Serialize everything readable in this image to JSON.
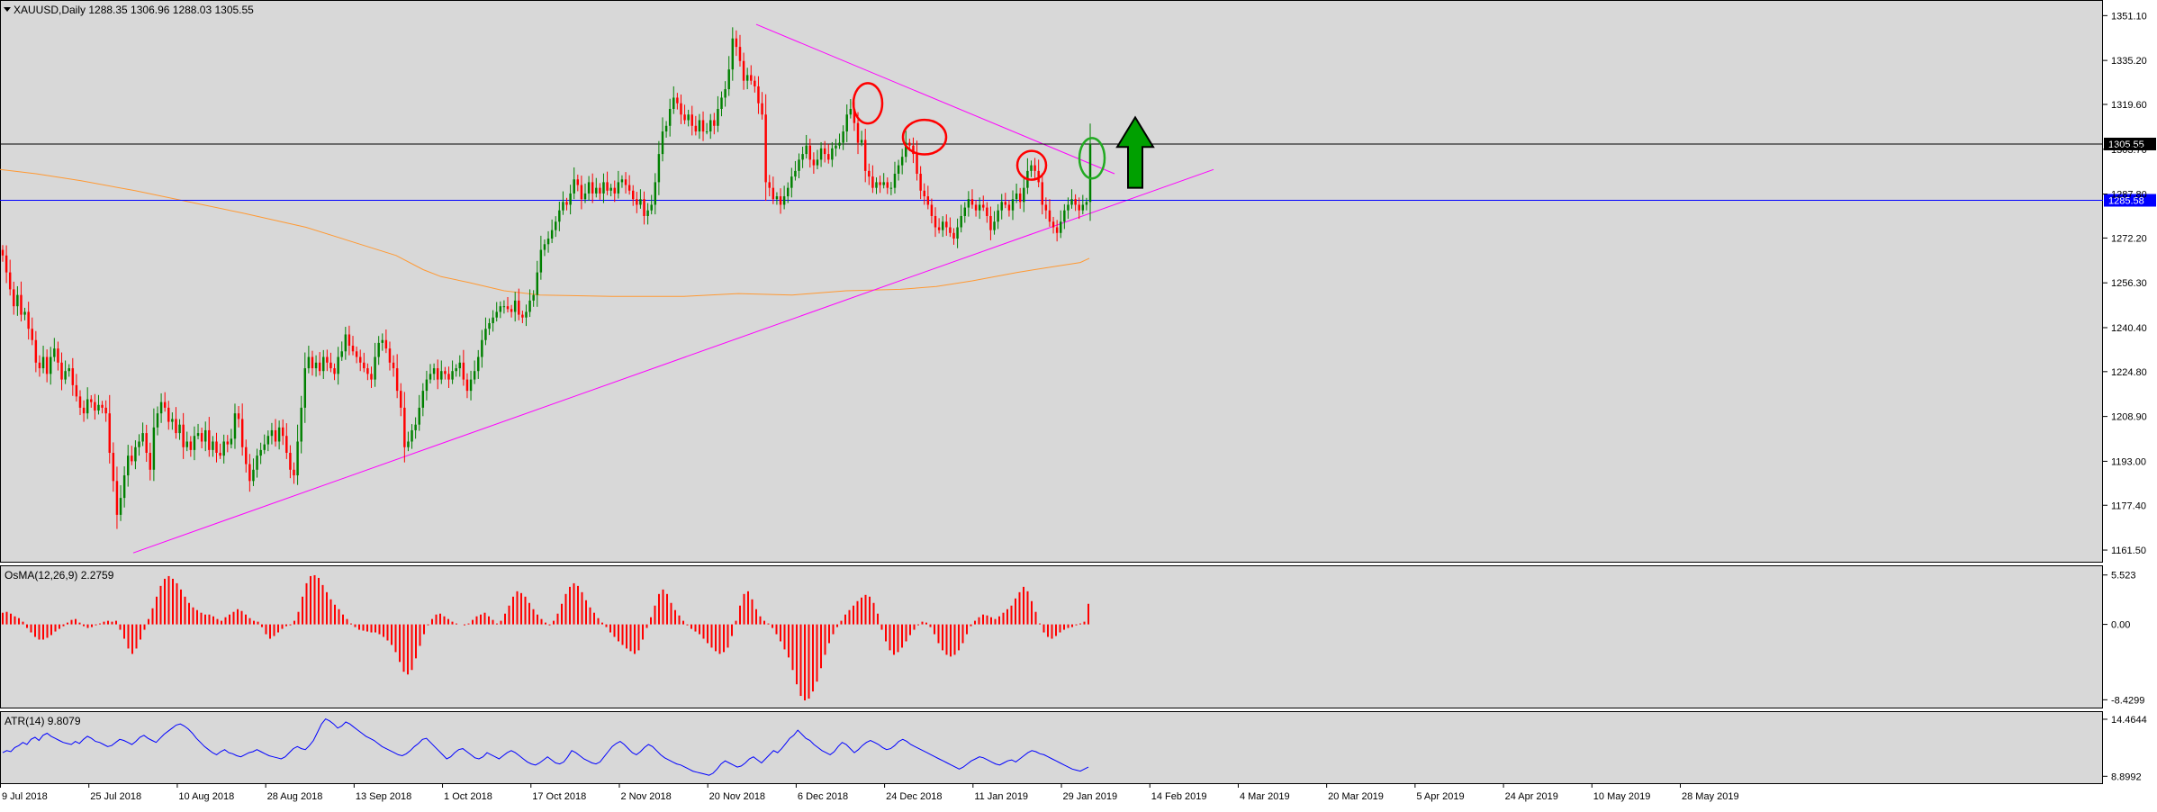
{
  "colors": {
    "background": "#d8d8d8",
    "bull": "#008000",
    "bear": "#ff0000",
    "ma": "#ff9933",
    "trendline": "#ff00ff",
    "level_bid": "#000000",
    "level_blue": "#0000ff",
    "atr": "#0000ff",
    "osma": "#ff0000",
    "circle_red": "#ff0000",
    "circle_green": "#22aa22",
    "arrow_fill": "#00a000"
  },
  "chart_data": {
    "type": "candlestick",
    "symbol_header": "XAUUSD,Daily  1288.35 1306.96 1288.03 1305.55",
    "price_axis_ticks": [
      "1351.10",
      "1335.20",
      "1319.60",
      "1303.70",
      "1287.80",
      "1272.20",
      "1256.30",
      "1240.40",
      "1224.80",
      "1208.90",
      "1193.00",
      "1177.40",
      "1161.50"
    ],
    "ylim": [
      1158.0,
      1356.0
    ],
    "date_labels": [
      "9 Jul 2018",
      "25 Jul 2018",
      "10 Aug 2018",
      "28 Aug 2018",
      "13 Sep 2018",
      "1 Oct 2018",
      "17 Oct 2018",
      "2 Nov 2018",
      "20 Nov 2018",
      "6 Dec 2018",
      "24 Dec 2018",
      "11 Jan 2019",
      "29 Jan 2019",
      "14 Feb 2019",
      "4 Mar 2019",
      "20 Mar 2019",
      "5 Apr 2019",
      "24 Apr 2019",
      "10 May 2019",
      "28 May 2019"
    ],
    "closes": [
      1266,
      1260,
      1254,
      1248,
      1252,
      1245,
      1246,
      1240,
      1236,
      1228,
      1226,
      1230,
      1224,
      1230,
      1233,
      1228,
      1222,
      1225,
      1226,
      1220,
      1216,
      1212,
      1210,
      1215,
      1214,
      1211,
      1213,
      1212,
      1210,
      1196,
      1186,
      1174,
      1180,
      1188,
      1195,
      1193,
      1198,
      1200,
      1203,
      1196,
      1190,
      1205,
      1210,
      1214,
      1212,
      1207,
      1208,
      1203,
      1206,
      1198,
      1200,
      1197,
      1202,
      1203,
      1200,
      1204,
      1197,
      1200,
      1196,
      1195,
      1200,
      1199,
      1201,
      1210,
      1208,
      1198,
      1192,
      1186,
      1190,
      1195,
      1197,
      1199,
      1202,
      1204,
      1200,
      1205,
      1202,
      1196,
      1190,
      1188,
      1200,
      1212,
      1226,
      1230,
      1226,
      1228,
      1225,
      1230,
      1228,
      1226,
      1224,
      1230,
      1232,
      1238,
      1234,
      1232,
      1230,
      1228,
      1226,
      1224,
      1222,
      1230,
      1235,
      1236,
      1233,
      1228,
      1226,
      1218,
      1212,
      1198,
      1200,
      1204,
      1206,
      1212,
      1218,
      1222,
      1224,
      1226,
      1222,
      1225,
      1224,
      1222,
      1225,
      1226,
      1228,
      1222,
      1218,
      1222,
      1225,
      1230,
      1236,
      1240,
      1242,
      1244,
      1246,
      1248,
      1248,
      1247,
      1246,
      1250,
      1245,
      1244,
      1246,
      1250,
      1252,
      1260,
      1268,
      1270,
      1272,
      1275,
      1278,
      1282,
      1285,
      1284,
      1288,
      1293,
      1291,
      1286,
      1288,
      1292,
      1288,
      1290,
      1288,
      1292,
      1289,
      1290,
      1288,
      1292,
      1293,
      1291,
      1289,
      1286,
      1284,
      1286,
      1280,
      1282,
      1284,
      1292,
      1302,
      1310,
      1312,
      1318,
      1322,
      1320,
      1316,
      1314,
      1316,
      1312,
      1310,
      1314,
      1310,
      1310,
      1314,
      1312,
      1318,
      1322,
      1325,
      1332,
      1343,
      1340,
      1335,
      1328,
      1330,
      1328,
      1326,
      1320,
      1316,
      1292,
      1290,
      1286,
      1287,
      1284,
      1287,
      1290,
      1294,
      1296,
      1300,
      1302,
      1305,
      1300,
      1298,
      1300,
      1304,
      1302,
      1300,
      1304,
      1305,
      1306,
      1310,
      1316,
      1318,
      1313,
      1306,
      1307,
      1296,
      1294,
      1290,
      1292,
      1291,
      1292,
      1290,
      1290,
      1295,
      1298,
      1301,
      1306,
      1305,
      1302,
      1295,
      1289,
      1287,
      1284,
      1280,
      1276,
      1275,
      1278,
      1276,
      1274,
      1272,
      1276,
      1280,
      1283,
      1286,
      1284,
      1282,
      1284,
      1283,
      1280,
      1275,
      1278,
      1282,
      1285,
      1284,
      1282,
      1286,
      1288,
      1285,
      1290,
      1296,
      1298,
      1296,
      1292,
      1284,
      1282,
      1278,
      1276,
      1274,
      1278,
      1282,
      1284,
      1286,
      1284,
      1282,
      1284,
      1285,
      1305.55
    ],
    "ma_path": [
      [
        0,
        1296.5
      ],
      [
        40,
        1295
      ],
      [
        90,
        1292.5
      ],
      [
        150,
        1289
      ],
      [
        210,
        1285
      ],
      [
        270,
        1281
      ],
      [
        340,
        1276
      ],
      [
        400,
        1270
      ],
      [
        440,
        1266
      ],
      [
        470,
        1261
      ],
      [
        490,
        1258.5
      ],
      [
        520,
        1256.5
      ],
      [
        560,
        1253.5
      ],
      [
        600,
        1252
      ],
      [
        680,
        1251.5
      ],
      [
        760,
        1251.5
      ],
      [
        820,
        1252.5
      ],
      [
        880,
        1252
      ],
      [
        940,
        1253.5
      ],
      [
        1000,
        1254
      ],
      [
        1040,
        1255
      ],
      [
        1080,
        1257
      ],
      [
        1130,
        1260
      ],
      [
        1170,
        1262
      ],
      [
        1200,
        1263.5
      ],
      [
        1210,
        1265
      ]
    ],
    "trendlines": [
      {
        "from": [
          148,
          1160.5
        ],
        "to": [
          1348,
          1296.5
        ]
      },
      {
        "from": [
          840,
          1348.0
        ],
        "to": [
          1238,
          1295.0
        ]
      }
    ],
    "levels": [
      {
        "price": 1305.55,
        "label": "1305.55",
        "style": "bid"
      },
      {
        "price": 1285.58,
        "label": "1285.58",
        "style": "blue"
      }
    ],
    "annotations": [
      {
        "shape": "ellipse",
        "cx": 964,
        "cy": 1320,
        "rx": 16,
        "ry": 7,
        "color": "red"
      },
      {
        "shape": "ellipse",
        "cx": 1027,
        "cy": 1308,
        "rx": 24,
        "ry": 6,
        "color": "red"
      },
      {
        "shape": "ellipse",
        "cx": 1146,
        "cy": 1298,
        "rx": 16,
        "ry": 5,
        "color": "red"
      },
      {
        "shape": "ellipse",
        "cx": 1213,
        "cy": 1300.5,
        "rx": 14,
        "ry": 7,
        "color": "green"
      },
      {
        "shape": "arrow_up",
        "x": 1261,
        "from": 1290,
        "to": 1315
      }
    ],
    "osma": {
      "label": "OsMA(12,26,9) 2.2759",
      "ticks": [
        "5.523",
        "0.00",
        "-8.4299"
      ],
      "ylim": [
        -9.0,
        6.2
      ],
      "values": [
        1.3,
        1.4,
        1.2,
        0.9,
        0.7,
        0.3,
        -0.4,
        -0.9,
        -1.4,
        -1.7,
        -1.7,
        -1.5,
        -1.2,
        -0.8,
        -0.5,
        -0.2,
        0.2,
        0.5,
        0.6,
        0.2,
        -0.2,
        -0.4,
        -0.3,
        -0.1,
        0.1,
        0.3,
        0.4,
        0.3,
        0.4,
        -0.6,
        -1.6,
        -2.7,
        -3.3,
        -2.7,
        -1.7,
        -0.6,
        0.6,
        1.8,
        3.1,
        4.3,
        5.1,
        5.4,
        5.1,
        4.6,
        3.9,
        3.1,
        2.4,
        1.9,
        1.6,
        1.3,
        1.1,
        1.1,
        0.9,
        0.6,
        0.4,
        0.8,
        1.1,
        1.4,
        1.7,
        1.5,
        1.1,
        0.7,
        0.4,
        0.3,
        -0.3,
        -1.1,
        -1.6,
        -1.3,
        -0.9,
        -0.5,
        -0.2,
        -0.1,
        0.4,
        1.4,
        3.1,
        4.6,
        5.4,
        5.5,
        5.2,
        4.4,
        3.6,
        2.8,
        2.2,
        1.7,
        1.1,
        0.6,
        0.1,
        -0.3,
        -0.6,
        -0.7,
        -0.8,
        -0.9,
        -0.9,
        -1.1,
        -1.4,
        -1.8,
        -2.3,
        -3.1,
        -4.2,
        -5.3,
        -5.6,
        -5.1,
        -3.8,
        -2.4,
        -1.1,
        -0.1,
        0.6,
        1.1,
        1.2,
        0.9,
        0.6,
        0.3,
        0.1,
        0.0,
        -0.1,
        0.1,
        0.5,
        0.9,
        1.1,
        1.3,
        0.9,
        0.5,
        0.1,
        0.4,
        1.2,
        2.1,
        3.1,
        3.7,
        3.5,
        3.1,
        2.4,
        1.7,
        1.1,
        0.6,
        0.2,
        -0.1,
        0.4,
        1.2,
        2.3,
        3.4,
        4.2,
        4.6,
        4.3,
        3.6,
        2.7,
        1.9,
        1.3,
        0.7,
        0.2,
        -0.3,
        -0.9,
        -1.4,
        -1.9,
        -2.3,
        -2.7,
        -3.0,
        -3.3,
        -2.9,
        -1.7,
        -0.4,
        0.8,
        2.1,
        3.4,
        3.9,
        3.4,
        2.4,
        1.6,
        1.0,
        0.4,
        -0.1,
        -0.5,
        -0.8,
        -1.1,
        -1.6,
        -2.1,
        -2.6,
        -3.0,
        -3.3,
        -3.1,
        -2.6,
        -1.3,
        0.4,
        2.1,
        3.4,
        3.7,
        2.8,
        1.7,
        0.9,
        0.4,
        0.1,
        -0.4,
        -1.1,
        -1.9,
        -2.8,
        -3.7,
        -5.1,
        -6.7,
        -8.0,
        -8.5,
        -8.3,
        -7.5,
        -6.4,
        -4.9,
        -3.4,
        -2.1,
        -1.1,
        -0.3,
        0.4,
        1.1,
        1.6,
        2.1,
        2.6,
        3.0,
        3.3,
        3.1,
        2.4,
        1.2,
        -0.6,
        -1.9,
        -2.9,
        -3.4,
        -3.1,
        -2.6,
        -1.9,
        -1.2,
        -0.6,
        -0.1,
        0.3,
        0.2,
        -0.3,
        -1.1,
        -2.1,
        -2.9,
        -3.4,
        -3.6,
        -3.4,
        -2.9,
        -2.1,
        -1.1,
        -0.2,
        0.4,
        0.8,
        1.1,
        1.0,
        0.8,
        0.6,
        0.9,
        1.3,
        1.7,
        2.1,
        2.9,
        3.6,
        4.2,
        3.7,
        2.6,
        1.4,
        0.1,
        -0.9,
        -1.4,
        -1.6,
        -1.3,
        -0.9,
        -0.6,
        -0.4,
        -0.3,
        -0.1,
        0.1,
        0.3,
        2.3
      ]
    },
    "atr": {
      "label": "ATR(14) 9.8079",
      "ticks": [
        "14.4644",
        "8.8992"
      ],
      "ylim": [
        8.4,
        14.9
      ],
      "values": [
        11.2,
        11.4,
        11.3,
        11.7,
        11.9,
        12.2,
        12.0,
        12.5,
        12.7,
        12.4,
        12.9,
        13.1,
        12.8,
        12.6,
        12.4,
        12.2,
        12.1,
        12.0,
        12.3,
        12.1,
        12.5,
        12.8,
        12.6,
        12.3,
        12.2,
        12.0,
        11.8,
        11.9,
        12.2,
        12.5,
        12.4,
        12.2,
        12.0,
        12.3,
        12.7,
        12.9,
        12.6,
        12.4,
        12.2,
        12.6,
        13.0,
        13.3,
        13.6,
        13.9,
        14.0,
        13.8,
        13.5,
        13.1,
        12.6,
        12.2,
        11.8,
        11.5,
        11.2,
        11.0,
        11.3,
        11.5,
        11.2,
        11.1,
        10.9,
        10.8,
        11.0,
        11.2,
        11.3,
        11.5,
        11.3,
        11.1,
        10.9,
        10.8,
        10.7,
        10.6,
        10.8,
        11.2,
        11.6,
        11.8,
        11.6,
        11.5,
        11.9,
        12.4,
        13.2,
        14.0,
        14.5,
        14.3,
        14.0,
        13.6,
        13.8,
        14.2,
        14.0,
        13.7,
        13.4,
        13.1,
        12.8,
        12.6,
        12.4,
        12.1,
        11.8,
        11.6,
        11.4,
        11.2,
        11.0,
        10.9,
        11.1,
        11.4,
        11.8,
        12.1,
        12.5,
        12.6,
        12.2,
        11.8,
        11.4,
        11.0,
        10.6,
        10.8,
        11.2,
        11.5,
        11.6,
        11.3,
        11.0,
        10.7,
        10.6,
        10.8,
        11.2,
        11.0,
        10.8,
        10.6,
        10.9,
        11.2,
        11.4,
        11.2,
        10.9,
        10.6,
        10.3,
        10.1,
        10.0,
        10.2,
        10.5,
        10.8,
        10.5,
        10.2,
        10.1,
        10.3,
        10.8,
        11.4,
        11.2,
        10.9,
        10.6,
        10.4,
        10.2,
        10.1,
        10.3,
        10.8,
        11.3,
        11.8,
        12.1,
        12.3,
        12.0,
        11.6,
        11.2,
        11.0,
        11.3,
        11.7,
        12.0,
        11.8,
        11.4,
        11.0,
        10.7,
        10.5,
        10.3,
        10.1,
        10.0,
        9.8,
        9.6,
        9.4,
        9.3,
        9.2,
        9.1,
        9.0,
        9.2,
        9.6,
        10.1,
        10.4,
        10.2,
        10.0,
        9.8,
        9.9,
        10.2,
        10.6,
        10.8,
        10.5,
        10.2,
        10.6,
        11.0,
        11.4,
        11.2,
        11.6,
        12.1,
        12.6,
        12.9,
        13.4,
        13.0,
        12.6,
        12.4,
        12.0,
        11.7,
        11.4,
        11.2,
        11.0,
        11.3,
        11.8,
        12.2,
        12.0,
        11.6,
        11.2,
        11.5,
        11.9,
        12.2,
        12.4,
        12.2,
        12.0,
        11.7,
        11.5,
        11.6,
        11.9,
        12.3,
        12.5,
        12.3,
        12.0,
        11.8,
        11.6,
        11.4,
        11.2,
        11.0,
        10.8,
        10.6,
        10.4,
        10.2,
        10.0,
        9.8,
        9.6,
        9.8,
        10.1,
        10.4,
        10.6,
        10.8,
        10.7,
        10.5,
        10.3,
        10.1,
        10.0,
        10.2,
        10.4,
        10.5,
        10.3,
        10.6,
        10.9,
        11.2,
        11.4,
        11.3,
        11.1,
        11.0,
        10.8,
        10.6,
        10.4,
        10.2,
        10.0,
        9.8,
        9.6,
        9.5,
        9.4,
        9.6,
        9.8
      ]
    }
  }
}
